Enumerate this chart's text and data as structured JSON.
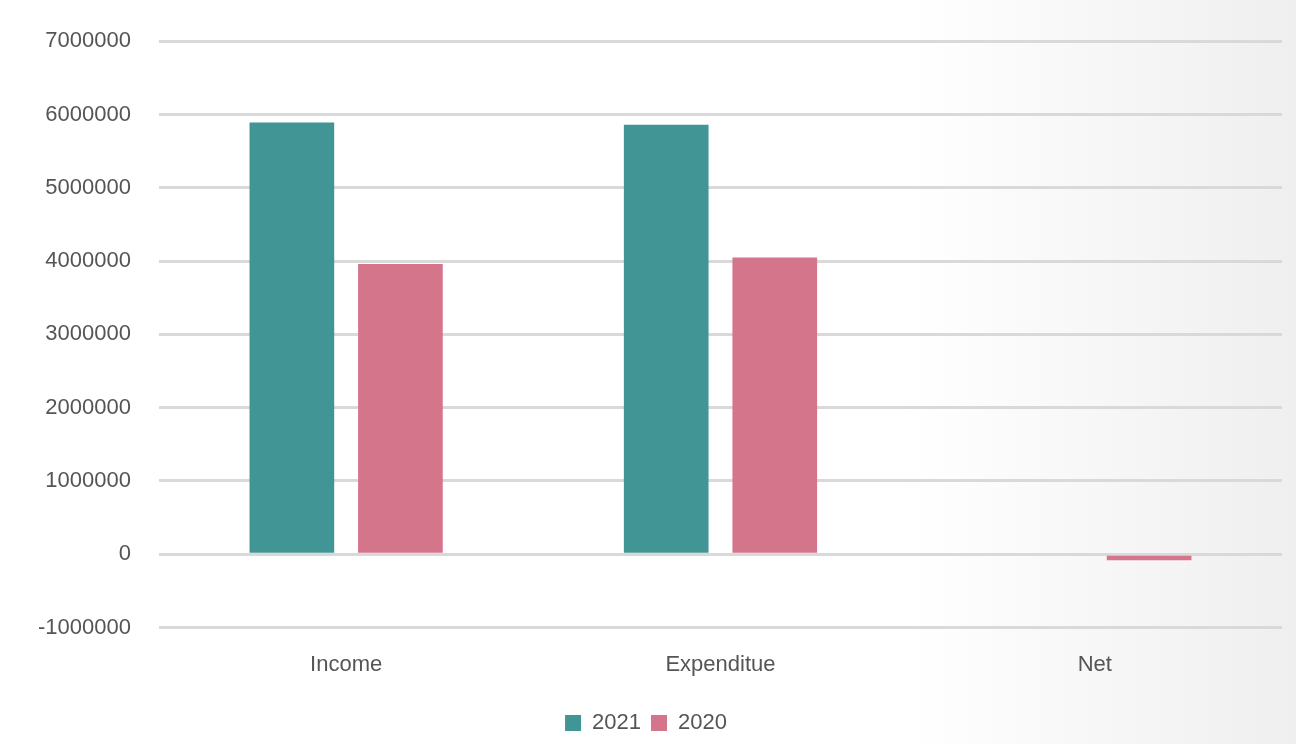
{
  "chart_data": {
    "type": "bar",
    "categories": [
      "Income",
      "Expenditue",
      "Net"
    ],
    "series": [
      {
        "name": "2021",
        "color": "#419594",
        "values": [
          5890000,
          5860000,
          0
        ]
      },
      {
        "name": "2020",
        "color": "#d5758b",
        "values": [
          3960000,
          4050000,
          -80000
        ]
      }
    ],
    "ylim": [
      -1000000,
      7000000
    ],
    "yticks": [
      -1000000,
      0,
      1000000,
      2000000,
      3000000,
      4000000,
      5000000,
      6000000,
      7000000
    ],
    "grid": "y",
    "legend": "bottom"
  }
}
